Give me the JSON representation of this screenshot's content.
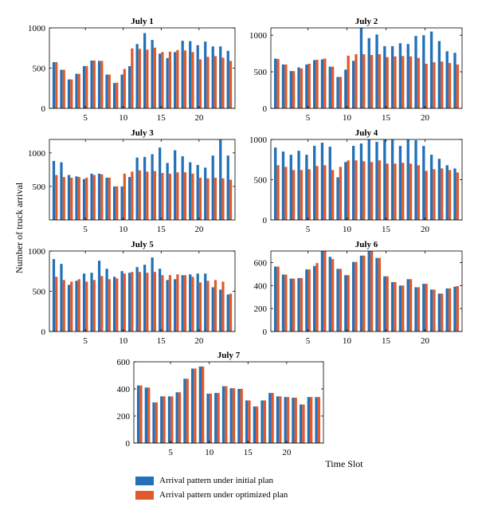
{
  "colors": {
    "initial": "#2170b8",
    "optimized": "#e05a2c",
    "axis": "#000000"
  },
  "ylabel": "Number of truck arrival",
  "xlabel": "Time Slot",
  "legend": {
    "initial": "Arrival pattern under initial plan",
    "optimized": "Arrival pattern under optimized plan"
  },
  "chart_data": [
    {
      "type": "bar",
      "title": "July 1",
      "x": [
        1,
        2,
        3,
        4,
        5,
        6,
        7,
        8,
        9,
        10,
        11,
        12,
        13,
        14,
        15,
        16,
        17,
        18,
        19,
        20,
        21,
        22,
        23,
        24
      ],
      "xticks": [
        5,
        10,
        15,
        20
      ],
      "ylim": [
        0,
        1000
      ],
      "yticks": [
        0,
        500,
        1000
      ],
      "series": [
        {
          "name": "Arrival pattern under initial plan",
          "values": [
            575,
            480,
            360,
            430,
            525,
            595,
            590,
            420,
            315,
            420,
            525,
            800,
            935,
            850,
            680,
            625,
            700,
            840,
            835,
            785,
            830,
            770,
            770,
            715
          ]
        },
        {
          "name": "Arrival pattern under optimized plan",
          "values": [
            575,
            480,
            360,
            430,
            525,
            595,
            590,
            420,
            320,
            490,
            745,
            740,
            730,
            755,
            700,
            705,
            725,
            720,
            700,
            610,
            640,
            650,
            630,
            590
          ]
        }
      ]
    },
    {
      "type": "bar",
      "title": "July 2",
      "x": [
        1,
        2,
        3,
        4,
        5,
        6,
        7,
        8,
        9,
        10,
        11,
        12,
        13,
        14,
        15,
        16,
        17,
        18,
        19,
        20,
        21,
        22,
        23,
        24
      ],
      "xticks": [
        5,
        10,
        15,
        20
      ],
      "ylim": [
        0,
        1100
      ],
      "yticks": [
        0,
        500,
        1000
      ],
      "series": [
        {
          "name": "Arrival pattern under initial plan",
          "values": [
            680,
            600,
            510,
            560,
            600,
            660,
            670,
            570,
            430,
            530,
            650,
            1100,
            960,
            1010,
            850,
            850,
            890,
            880,
            990,
            1000,
            1050,
            920,
            780,
            760
          ]
        },
        {
          "name": "Arrival pattern under optimized plan",
          "values": [
            675,
            600,
            510,
            545,
            610,
            665,
            680,
            570,
            430,
            720,
            740,
            740,
            730,
            740,
            700,
            710,
            715,
            710,
            690,
            610,
            630,
            640,
            620,
            600
          ]
        }
      ]
    },
    {
      "type": "bar",
      "title": "July 3",
      "x": [
        1,
        2,
        3,
        4,
        5,
        6,
        7,
        8,
        9,
        10,
        11,
        12,
        13,
        14,
        15,
        16,
        17,
        18,
        19,
        20,
        21,
        22,
        23,
        24
      ],
      "xticks": [
        5,
        10,
        15,
        20
      ],
      "ylim": [
        0,
        1200
      ],
      "yticks": [
        500,
        1000
      ],
      "series": [
        {
          "name": "Arrival pattern under initial plan",
          "values": [
            880,
            860,
            670,
            650,
            610,
            690,
            690,
            630,
            500,
            500,
            640,
            930,
            940,
            980,
            1080,
            850,
            1040,
            950,
            860,
            820,
            780,
            960,
            1200,
            960
          ]
        },
        {
          "name": "Arrival pattern under optimized plan",
          "values": [
            670,
            640,
            630,
            640,
            630,
            670,
            680,
            630,
            500,
            690,
            720,
            740,
            720,
            730,
            700,
            690,
            710,
            710,
            690,
            630,
            620,
            630,
            620,
            600
          ]
        }
      ]
    },
    {
      "type": "bar",
      "title": "July 4",
      "x": [
        1,
        2,
        3,
        4,
        5,
        6,
        7,
        8,
        9,
        10,
        11,
        12,
        13,
        14,
        15,
        16,
        17,
        18,
        19,
        20,
        21,
        22,
        23,
        24
      ],
      "xticks": [
        5,
        10,
        15,
        20
      ],
      "ylim": [
        0,
        1000
      ],
      "yticks": [
        0,
        500,
        1000
      ],
      "series": [
        {
          "name": "Arrival pattern under initial plan",
          "values": [
            900,
            850,
            810,
            860,
            810,
            920,
            960,
            910,
            530,
            720,
            920,
            950,
            1000,
            970,
            1000,
            1000,
            920,
            1000,
            990,
            920,
            810,
            760,
            680,
            640
          ]
        },
        {
          "name": "Arrival pattern under optimized plan",
          "values": [
            680,
            660,
            620,
            620,
            630,
            670,
            680,
            620,
            660,
            740,
            740,
            730,
            720,
            740,
            700,
            700,
            710,
            700,
            680,
            610,
            630,
            640,
            620,
            590
          ]
        }
      ]
    },
    {
      "type": "bar",
      "title": "July 5",
      "x": [
        1,
        2,
        3,
        4,
        5,
        6,
        7,
        8,
        9,
        10,
        11,
        12,
        13,
        14,
        15,
        16,
        17,
        18,
        19,
        20,
        21,
        22,
        23,
        24
      ],
      "xticks": [
        5,
        10,
        15,
        20
      ],
      "ylim": [
        0,
        1000
      ],
      "yticks": [
        0,
        500,
        1000
      ],
      "series": [
        {
          "name": "Arrival pattern under initial plan",
          "values": [
            900,
            840,
            580,
            630,
            720,
            730,
            880,
            780,
            680,
            750,
            730,
            800,
            830,
            920,
            780,
            640,
            650,
            700,
            710,
            720,
            720,
            550,
            520,
            460
          ]
        },
        {
          "name": "Arrival pattern under optimized plan",
          "values": [
            680,
            640,
            620,
            650,
            620,
            640,
            690,
            650,
            660,
            720,
            740,
            740,
            730,
            740,
            700,
            700,
            710,
            700,
            680,
            610,
            630,
            640,
            620,
            470
          ]
        }
      ]
    },
    {
      "type": "bar",
      "title": "July 6",
      "x": [
        1,
        2,
        3,
        4,
        5,
        6,
        7,
        8,
        9,
        10,
        11,
        12,
        13,
        14,
        15,
        16,
        17,
        18,
        19,
        20,
        21,
        22,
        23,
        24
      ],
      "xticks": [
        5,
        10,
        15,
        20
      ],
      "ylim": [
        0,
        700
      ],
      "yticks": [
        0,
        200,
        400,
        600
      ],
      "series": [
        {
          "name": "Arrival pattern under initial plan",
          "values": [
            565,
            495,
            460,
            465,
            540,
            570,
            720,
            650,
            545,
            490,
            605,
            660,
            700,
            640,
            480,
            430,
            400,
            455,
            385,
            415,
            365,
            330,
            375,
            390
          ]
        },
        {
          "name": "Arrival pattern under optimized plan",
          "values": [
            565,
            495,
            460,
            465,
            540,
            595,
            700,
            630,
            545,
            490,
            605,
            660,
            700,
            640,
            480,
            430,
            400,
            455,
            385,
            415,
            365,
            330,
            375,
            395
          ]
        }
      ]
    },
    {
      "type": "bar",
      "title": "July 7",
      "x": [
        1,
        2,
        3,
        4,
        5,
        6,
        7,
        8,
        9,
        10,
        11,
        12,
        13,
        14,
        15,
        16,
        17,
        18,
        19,
        20,
        21,
        22,
        23,
        24
      ],
      "xticks": [
        5,
        10,
        15,
        20
      ],
      "ylim": [
        0,
        600
      ],
      "yticks": [
        0,
        200,
        400,
        600
      ],
      "series": [
        {
          "name": "Arrival pattern under initial plan",
          "values": [
            425,
            410,
            300,
            345,
            345,
            375,
            475,
            550,
            565,
            365,
            370,
            420,
            405,
            400,
            315,
            270,
            315,
            370,
            345,
            340,
            335,
            285,
            340,
            340
          ]
        },
        {
          "name": "Arrival pattern under optimized plan",
          "values": [
            425,
            410,
            300,
            345,
            345,
            375,
            475,
            550,
            565,
            365,
            370,
            420,
            405,
            400,
            315,
            270,
            315,
            370,
            345,
            340,
            335,
            285,
            340,
            340
          ]
        }
      ]
    }
  ]
}
